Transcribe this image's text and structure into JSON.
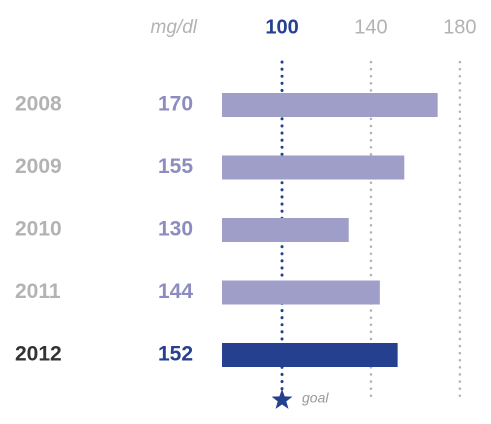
{
  "chart_data": {
    "type": "bar",
    "orientation": "horizontal",
    "unit_label": "mg/dl",
    "categories": [
      "2008",
      "2009",
      "2010",
      "2011",
      "2012"
    ],
    "values": [
      170,
      155,
      130,
      144,
      152
    ],
    "colors": [
      "#9e9ec8",
      "#9e9ec8",
      "#9e9ec8",
      "#9e9ec8",
      "#25408f"
    ],
    "category_colors": [
      "#b3b3b3",
      "#b3b3b3",
      "#b3b3b3",
      "#b3b3b3",
      "#333333"
    ],
    "xlim": [
      73,
      194
    ],
    "xticks": [
      100,
      140,
      180
    ],
    "grid": true,
    "goal": {
      "value": 100,
      "label": "goal",
      "color": "#25408f"
    }
  }
}
